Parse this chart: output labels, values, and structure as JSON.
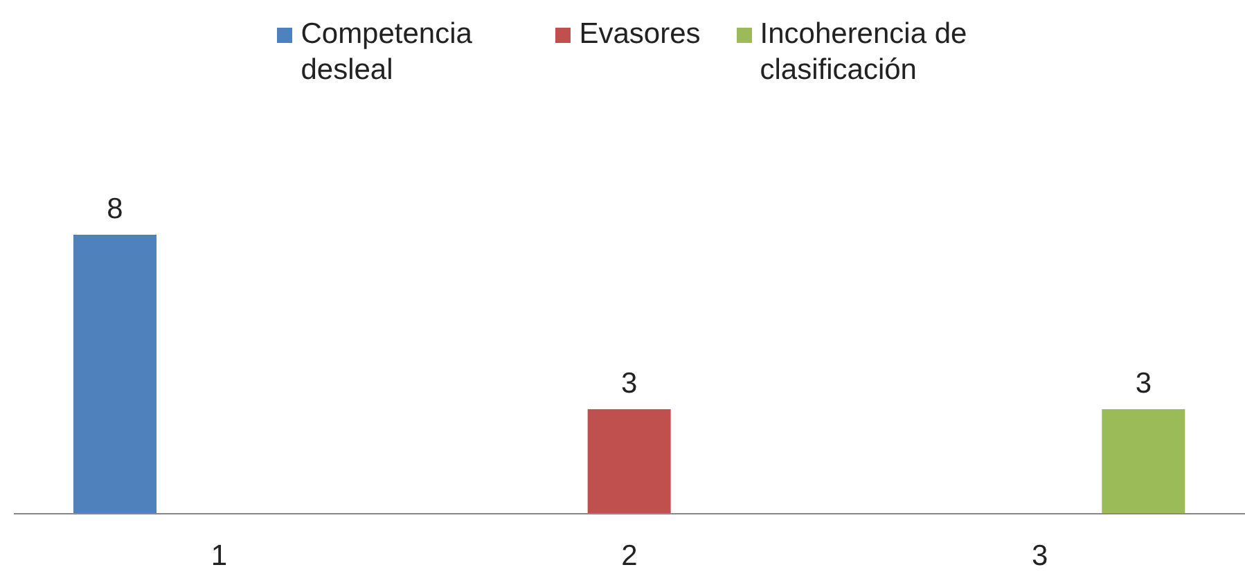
{
  "chart_data": {
    "type": "bar",
    "categories": [
      "1",
      "2",
      "3"
    ],
    "series": [
      {
        "name": "Competencia desleal",
        "color": "#4f81bd",
        "values": [
          8,
          null,
          null
        ]
      },
      {
        "name": "Evasores",
        "color": "#c0504d",
        "values": [
          null,
          3,
          null
        ]
      },
      {
        "name": "Incoherencia de clasificación",
        "color": "#9bbb59",
        "values": [
          null,
          null,
          3
        ]
      }
    ],
    "data_labels": true,
    "legend": "top",
    "grid": false
  }
}
